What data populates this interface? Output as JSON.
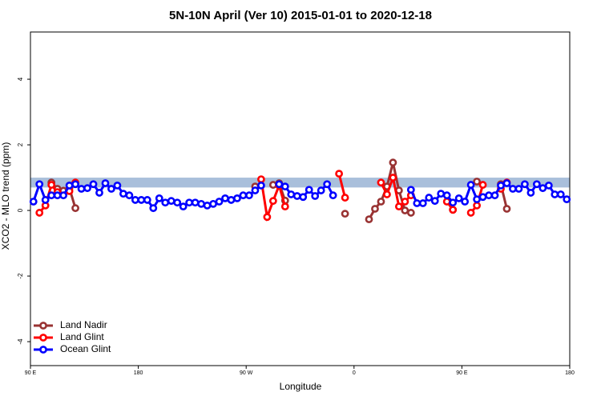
{
  "chart_data": {
    "type": "line",
    "title": "5N-10N April (Ver 10)   2015-01-01 to 2020-12-18",
    "x_label": "Longitude",
    "y_label": "XCO2 - MLO trend (ppm)",
    "xlim": [
      90,
      540
    ],
    "ylim": [
      -4.73,
      5.44
    ],
    "xticks": [
      {
        "value": 90,
        "label": "90 E"
      },
      180,
      {
        "value": 270,
        "label": "90 W"
      },
      {
        "value": 360,
        "label": "0"
      },
      {
        "value": 450,
        "label": "90 E"
      },
      {
        "value": 540,
        "label": "180"
      }
    ],
    "yticks": [
      -4,
      -2,
      0,
      2,
      4
    ],
    "reference_band": {
      "range": [
        0.7,
        1.0
      ],
      "color": "#a9bfdb"
    },
    "legend": "bottom-left",
    "x": [
      92.5,
      97.5,
      102.5,
      107.5,
      112.5,
      117.5,
      122.5,
      127.5,
      132.5,
      137.5,
      142.5,
      147.5,
      152.5,
      157.5,
      162.5,
      167.5,
      172.5,
      177.5,
      182.5,
      187.5,
      192.5,
      197.5,
      202.5,
      207.5,
      212.5,
      217.5,
      222.5,
      227.5,
      232.5,
      237.5,
      242.5,
      247.5,
      252.5,
      257.5,
      262.5,
      267.5,
      272.5,
      277.5,
      282.5,
      287.5,
      292.5,
      297.5,
      302.5,
      307.5,
      312.5,
      317.5,
      322.5,
      327.5,
      332.5,
      337.5,
      342.5,
      347.5,
      352.5,
      357.5,
      362.5,
      367.5,
      372.5,
      377.5,
      382.5,
      387.5,
      392.5,
      397.5,
      402.5,
      407.5,
      412.5,
      417.5,
      422.5,
      427.5,
      432.5,
      437.5,
      442.5,
      447.5,
      452.5,
      457.5,
      462.5,
      467.5,
      472.5,
      477.5,
      482.5,
      487.5,
      492.5,
      497.5,
      502.5,
      507.5,
      512.5,
      517.5,
      522.5,
      527.5,
      532.5,
      537.5
    ],
    "series": [
      {
        "name": "Land Nadir",
        "color": "#993333",
        "values": [
          null,
          null,
          null,
          0.85,
          0.66,
          0.6,
          0.68,
          0.07,
          null,
          null,
          null,
          null,
          null,
          null,
          null,
          null,
          null,
          null,
          null,
          null,
          null,
          null,
          null,
          null,
          null,
          null,
          null,
          null,
          null,
          null,
          null,
          null,
          null,
          null,
          null,
          null,
          null,
          0.73,
          null,
          null,
          0.78,
          0.83,
          0.3,
          null,
          null,
          null,
          null,
          null,
          null,
          null,
          null,
          null,
          -0.1,
          null,
          null,
          null,
          -0.27,
          0.05,
          0.27,
          0.73,
          1.46,
          0.61,
          0.0,
          -0.07,
          null,
          null,
          null,
          null,
          null,
          null,
          0.02,
          null,
          null,
          null,
          0.88,
          null,
          null,
          null,
          0.8,
          0.05,
          null,
          null,
          null,
          null,
          null,
          null,
          null,
          null,
          null,
          null
        ]
      },
      {
        "name": "Land Glint",
        "color": "#ff0000",
        "values": [
          null,
          -0.07,
          0.15,
          0.78,
          0.56,
          null,
          0.59,
          0.85,
          null,
          null,
          null,
          null,
          null,
          null,
          null,
          null,
          null,
          null,
          null,
          null,
          null,
          null,
          null,
          null,
          null,
          null,
          null,
          null,
          null,
          null,
          null,
          null,
          null,
          null,
          null,
          null,
          null,
          null,
          0.95,
          -0.2,
          0.29,
          0.76,
          0.12,
          null,
          null,
          null,
          null,
          null,
          null,
          null,
          null,
          1.12,
          0.39,
          null,
          null,
          null,
          null,
          null,
          0.85,
          0.49,
          1.0,
          0.12,
          0.27,
          0.46,
          null,
          null,
          null,
          null,
          null,
          0.27,
          0.02,
          null,
          null,
          -0.07,
          0.15,
          0.78,
          null,
          null,
          0.66,
          0.85,
          null,
          null,
          null,
          null,
          null,
          null,
          null,
          null,
          null,
          null
        ]
      },
      {
        "name": "Ocean Glint",
        "color": "#0000ff",
        "values": [
          0.27,
          0.8,
          0.32,
          0.46,
          0.46,
          0.46,
          0.76,
          0.8,
          0.66,
          0.68,
          0.8,
          0.54,
          0.83,
          0.66,
          0.76,
          0.51,
          0.46,
          0.32,
          0.32,
          0.32,
          0.07,
          0.37,
          0.24,
          0.29,
          0.24,
          0.12,
          0.24,
          0.24,
          0.2,
          0.15,
          0.2,
          0.27,
          0.37,
          0.32,
          0.37,
          0.46,
          0.46,
          0.61,
          0.76,
          null,
          null,
          0.8,
          0.73,
          0.49,
          0.44,
          0.41,
          0.63,
          0.44,
          0.61,
          0.8,
          0.46,
          null,
          null,
          null,
          null,
          null,
          null,
          null,
          null,
          null,
          null,
          null,
          null,
          0.63,
          0.22,
          0.22,
          0.39,
          0.29,
          0.51,
          0.46,
          0.24,
          0.37,
          0.27,
          0.78,
          0.34,
          0.41,
          0.46,
          0.46,
          0.76,
          0.83,
          0.66,
          0.66,
          0.8,
          0.54,
          0.8,
          0.68,
          0.76,
          0.49,
          0.49,
          0.34
        ]
      }
    ]
  }
}
